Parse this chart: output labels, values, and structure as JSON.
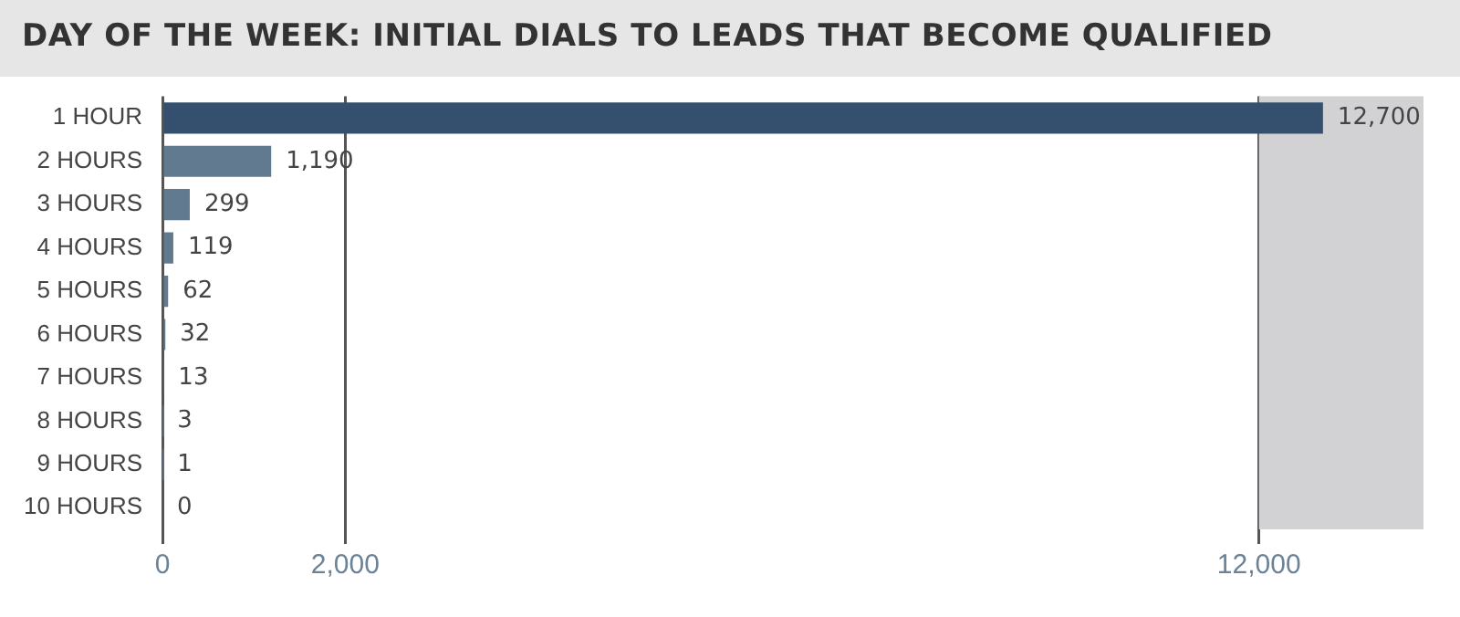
{
  "chart_data": {
    "type": "bar",
    "orientation": "horizontal",
    "title": "DAY OF THE WEEK: INITIAL DIALS TO LEADS THAT BECOME QUALIFIED",
    "categories": [
      "1 HOUR",
      "2 HOURS",
      "3 HOURS",
      "4 HOURS",
      "5 HOURS",
      "6 HOURS",
      "7 HOURS",
      "8 HOURS",
      "9 HOURS",
      "10 HOURS"
    ],
    "values": [
      12700,
      1190,
      299,
      119,
      62,
      32,
      13,
      3,
      1,
      0
    ],
    "value_labels": [
      "12,700",
      "1,190",
      "299",
      "119",
      "62",
      "32",
      "13",
      "3",
      "1",
      "0"
    ],
    "colors": [
      "#35506e",
      "#627a90",
      "#627a90",
      "#627a90",
      "#627a90",
      "#627a90",
      "#627a90",
      "#627a90",
      "#627a90",
      "#627a90"
    ],
    "xlim": [
      0,
      13800
    ],
    "xticks": [
      0,
      {
        "value": 2000,
        "label": "2,000"
      },
      {
        "value": 12000,
        "label": "12,000"
      }
    ],
    "bands": [
      {
        "axis": "x",
        "from": 12000,
        "to": 13800,
        "color": "#d2d2d4"
      }
    ],
    "grid": "x",
    "legend": false
  }
}
